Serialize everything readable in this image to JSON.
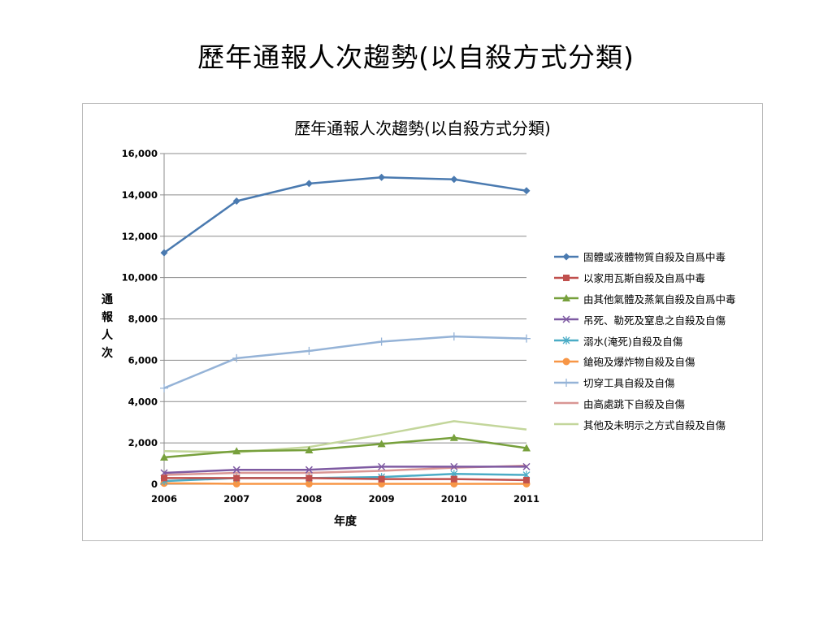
{
  "slide": {
    "title": "歷年通報人次趨勢(以自殺方式分類)"
  },
  "chart_data": {
    "type": "line",
    "title": "歷年通報人次趨勢(以自殺方式分類)",
    "xlabel": "年度",
    "ylabel": "通報人次",
    "x": [
      "2006",
      "2007",
      "2008",
      "2009",
      "2010",
      "2011"
    ],
    "ylim": [
      0,
      16000
    ],
    "yticks": [
      "0",
      "2,000",
      "4,000",
      "6,000",
      "8,000",
      "10,000",
      "12,000",
      "14,000",
      "16,000"
    ],
    "grid": true,
    "legend_position": "right",
    "series": [
      {
        "name": "固體或液體物質自殺及自爲中毒",
        "color": "#4a7ab0",
        "marker": "diamond",
        "values": [
          11200,
          13700,
          14550,
          14850,
          14750,
          14200
        ]
      },
      {
        "name": "以家用瓦斯自殺及自爲中毒",
        "color": "#c0504d",
        "marker": "square",
        "values": [
          300,
          300,
          300,
          250,
          250,
          200
        ]
      },
      {
        "name": "由其他氣體及蒸氣自殺及自爲中毒",
        "color": "#77a03c",
        "marker": "triangle",
        "values": [
          1300,
          1600,
          1650,
          1950,
          2250,
          1750
        ]
      },
      {
        "name": "吊死、勒死及窒息之自殺及自傷",
        "color": "#7e5aa2",
        "marker": "x",
        "values": [
          550,
          700,
          700,
          850,
          850,
          850
        ]
      },
      {
        "name": "溺水(淹死)自殺及自傷",
        "color": "#4bacc6",
        "marker": "star",
        "values": [
          150,
          300,
          300,
          350,
          500,
          450
        ]
      },
      {
        "name": "鎗砲及爆炸物自殺及自傷",
        "color": "#f79646",
        "marker": "circle",
        "values": [
          50,
          20,
          20,
          20,
          20,
          20
        ]
      },
      {
        "name": "切穿工具自殺及自傷",
        "color": "#95b3d7",
        "marker": "plus",
        "values": [
          4650,
          6100,
          6450,
          6900,
          7150,
          7050
        ]
      },
      {
        "name": "由高處跳下自殺及自傷",
        "color": "#d99694",
        "marker": "none",
        "values": [
          450,
          550,
          550,
          650,
          800,
          900
        ]
      },
      {
        "name": "其他及未明示之方式自殺及自傷",
        "color": "#c3d69b",
        "marker": "none",
        "values": [
          1600,
          1550,
          1800,
          2400,
          3050,
          2650
        ]
      }
    ]
  }
}
